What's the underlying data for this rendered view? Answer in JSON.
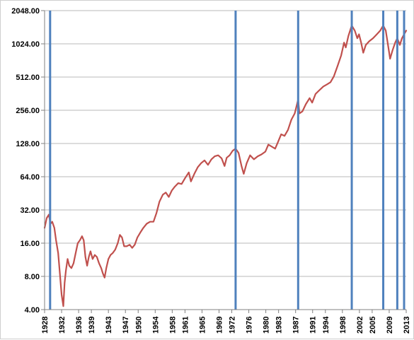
{
  "chart_data": {
    "type": "line",
    "title": "",
    "xlabel": "",
    "ylabel": "",
    "y_scale": "log2",
    "ylim": [
      4,
      2048
    ],
    "xlim": [
      1928,
      2013
    ],
    "grid": true,
    "legend": "none",
    "colors": {
      "series": "#c0504d",
      "marker_lines": "#4f81bd",
      "grid": "#b8b8b8",
      "axis": "#808080"
    },
    "y_ticks": [
      {
        "value": 4,
        "label": "4.00"
      },
      {
        "value": 8,
        "label": "8.00"
      },
      {
        "value": 16,
        "label": "16.00"
      },
      {
        "value": 32,
        "label": "32.00"
      },
      {
        "value": 64,
        "label": "64.00"
      },
      {
        "value": 128,
        "label": "128.00"
      },
      {
        "value": 256,
        "label": "256.00"
      },
      {
        "value": 512,
        "label": "512.00"
      },
      {
        "value": 1024,
        "label": "1024.00"
      },
      {
        "value": 2048,
        "label": "2048.00"
      }
    ],
    "x_ticks": [
      1928,
      1932,
      1936,
      1939,
      1943,
      1947,
      1950,
      1954,
      1958,
      1961,
      1965,
      1969,
      1972,
      1976,
      1980,
      1983,
      1987,
      1991,
      1994,
      1998,
      2002,
      2005,
      2009,
      2013
    ],
    "vertical_markers": [
      1929.3,
      1972.9,
      1987.6,
      2000.2,
      2007.6,
      2010.9,
      2012.5
    ],
    "series": [
      {
        "x": [
          1928.0,
          1928.5,
          1929.0,
          1929.4,
          1929.8,
          1930.3,
          1930.7,
          1931.2,
          1931.6,
          1932.0,
          1932.4,
          1932.7,
          1933.0,
          1933.4,
          1933.8,
          1934.3,
          1934.8,
          1935.3,
          1935.8,
          1936.3,
          1936.8,
          1937.2,
          1937.6,
          1938.0,
          1938.4,
          1938.8,
          1939.3,
          1939.8,
          1940.3,
          1940.8,
          1941.3,
          1941.7,
          1942.1,
          1942.5,
          1943.0,
          1943.5,
          1944.0,
          1944.6,
          1945.2,
          1945.7,
          1946.2,
          1946.7,
          1947.3,
          1948.0,
          1948.6,
          1949.2,
          1949.8,
          1950.5,
          1951.2,
          1952.0,
          1952.8,
          1953.6,
          1954.3,
          1955.0,
          1955.8,
          1956.5,
          1957.2,
          1957.9,
          1958.6,
          1959.4,
          1960.2,
          1961.0,
          1961.9,
          1962.4,
          1963.2,
          1964.0,
          1964.8,
          1965.6,
          1966.4,
          1967.2,
          1968.0,
          1968.8,
          1969.6,
          1970.3,
          1970.8,
          1971.5,
          1972.2,
          1972.9,
          1973.6,
          1974.3,
          1974.8,
          1975.5,
          1976.3,
          1977.2,
          1978.1,
          1979.0,
          1979.9,
          1980.6,
          1981.4,
          1982.2,
          1982.8,
          1983.6,
          1984.4,
          1985.2,
          1986.0,
          1986.8,
          1987.6,
          1987.9,
          1988.6,
          1989.4,
          1990.3,
          1990.9,
          1991.7,
          1992.6,
          1993.5,
          1994.4,
          1995.2,
          1996.0,
          1996.9,
          1997.7,
          1998.4,
          1998.8,
          1999.4,
          2000.2,
          2000.9,
          2001.5,
          2001.9,
          2002.4,
          2002.9,
          2003.5,
          2004.3,
          2005.2,
          2006.1,
          2006.9,
          2007.6,
          2008.2,
          2008.8,
          2009.2,
          2009.8,
          2010.4,
          2010.9,
          2011.5,
          2012.0,
          2012.5,
          2013.0
        ],
        "values": [
          22,
          27,
          29,
          24,
          25,
          22,
          17,
          13,
          8.5,
          5.5,
          4.3,
          7,
          9,
          11.5,
          10,
          9.5,
          10.5,
          13,
          16,
          17,
          18.5,
          17,
          12,
          10,
          12,
          13.5,
          11.5,
          12.5,
          12,
          10.5,
          9.5,
          8.5,
          7.8,
          9.5,
          11.5,
          12.5,
          13,
          14,
          16,
          19,
          18,
          15,
          15,
          15.5,
          14.5,
          15.5,
          18,
          20,
          22,
          24,
          25,
          25,
          30,
          38,
          44,
          46,
          42,
          48,
          52,
          56,
          55,
          62,
          70,
          58,
          68,
          78,
          85,
          90,
          82,
          92,
          98,
          100,
          94,
          80,
          95,
          100,
          110,
          115,
          105,
          80,
          68,
          85,
          100,
          92,
          98,
          102,
          108,
          125,
          120,
          115,
          130,
          155,
          150,
          170,
          210,
          240,
          320,
          240,
          250,
          290,
          330,
          300,
          360,
          390,
          420,
          440,
          460,
          520,
          650,
          800,
          1050,
          950,
          1200,
          1500,
          1350,
          1150,
          1250,
          1050,
          850,
          1000,
          1080,
          1150,
          1250,
          1350,
          1500,
          1350,
          950,
          750,
          900,
          1050,
          1150,
          1000,
          1150,
          1250,
          1350
        ]
      }
    ]
  }
}
